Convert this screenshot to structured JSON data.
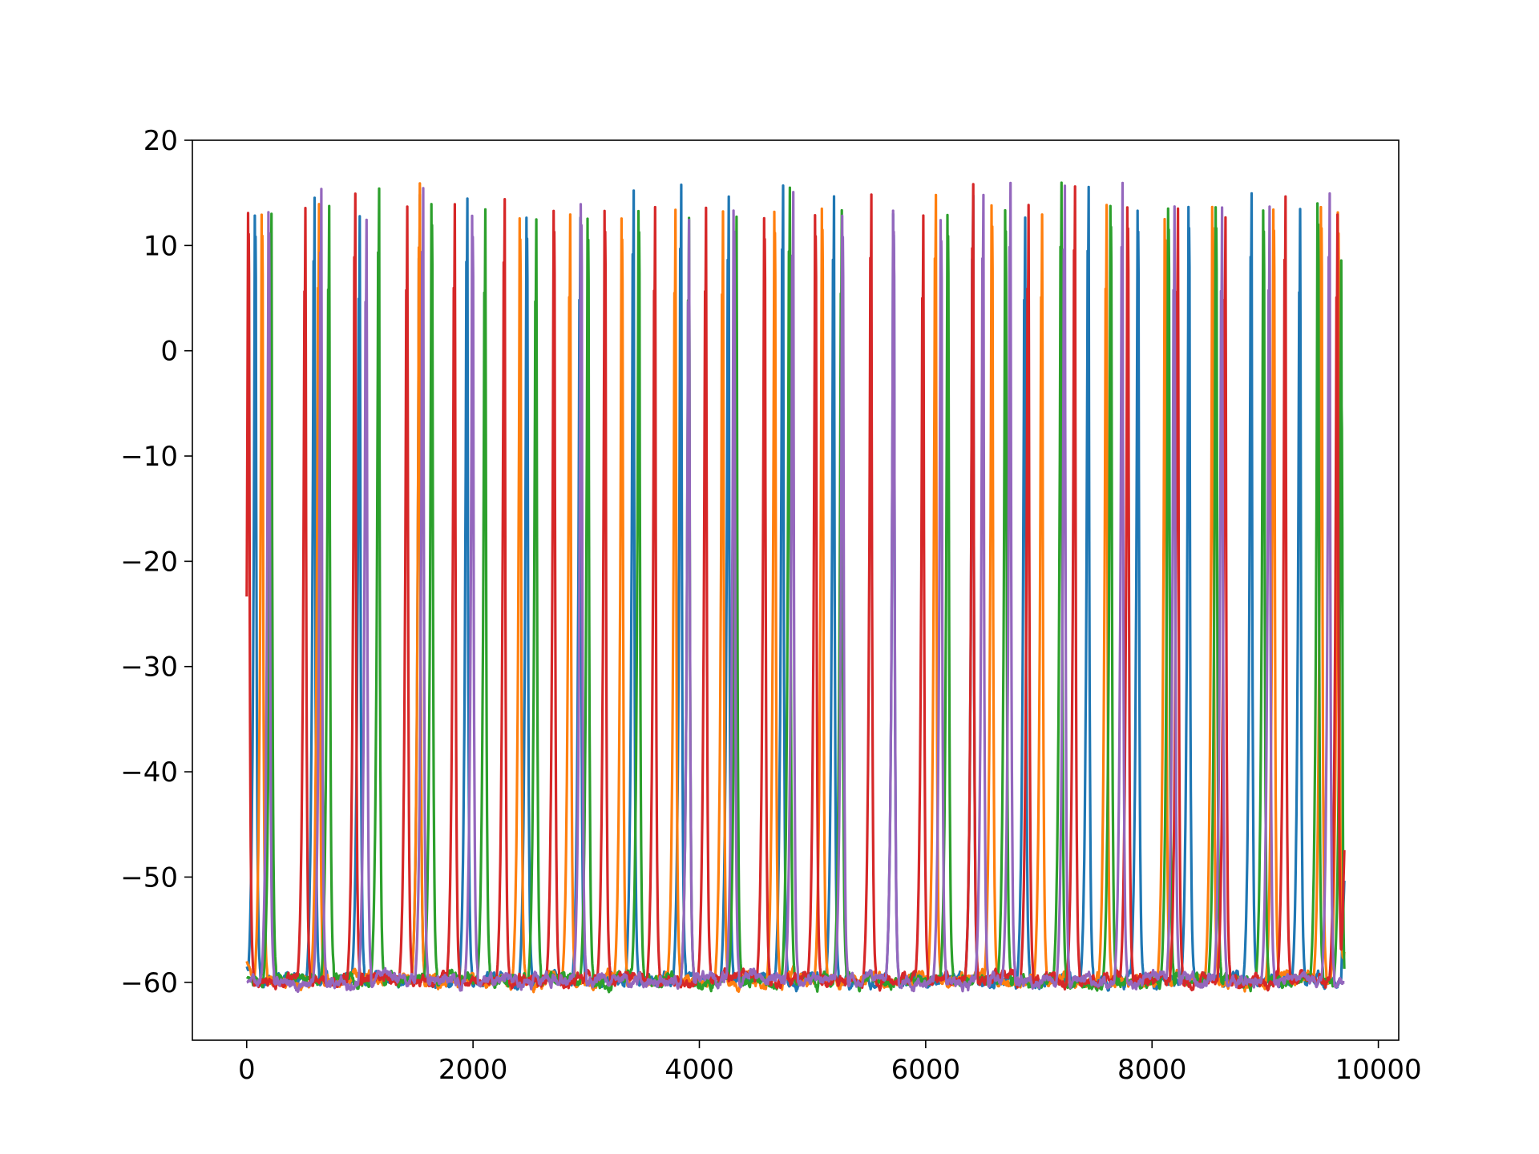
{
  "chart_data": {
    "type": "line",
    "title": "",
    "xlabel": "",
    "ylabel": "",
    "xlim": [
      -480,
      10180
    ],
    "ylim": [
      -65.5,
      20
    ],
    "x_ticks": [
      0,
      2000,
      4000,
      6000,
      8000,
      10000
    ],
    "x_tick_labels": [
      "0",
      "2000",
      "4000",
      "6000",
      "8000",
      "10000"
    ],
    "y_ticks": [
      20,
      10,
      0,
      -10,
      -20,
      -30,
      -40,
      -50,
      -60
    ],
    "y_tick_labels": [
      "20",
      "10",
      "0",
      "−10",
      "−20",
      "−30",
      "−40",
      "−50",
      "−60"
    ],
    "grid": false,
    "legend": "none",
    "x_end": 9700,
    "baseline": -59.8,
    "peak": 15.2,
    "series": [
      {
        "color": "#1f77b4",
        "start_value": -58.5,
        "end_value": -50.0,
        "spikes": [
          80,
          600,
          1000,
          1530,
          1950,
          2480,
          2950,
          3420,
          3840,
          4260,
          4740,
          5190,
          5720,
          6420,
          6880,
          7440,
          7880,
          8330,
          8880,
          9310
        ]
      },
      {
        "color": "#ff7f0e",
        "start_value": -58.0,
        "end_value": -57.0,
        "spikes": [
          140,
          640,
          1530,
          2420,
          2860,
          3320,
          3790,
          4210,
          4670,
          5090,
          6090,
          6590,
          7030,
          7600,
          8120,
          8540,
          9080,
          9500,
          9650
        ]
      },
      {
        "color": "#2ca02c",
        "start_value": -59.5,
        "end_value": -59.0,
        "spikes": [
          220,
          730,
          1170,
          1640,
          2110,
          2560,
          3020,
          3470,
          3910,
          4330,
          4800,
          5260,
          6200,
          6710,
          7200,
          7640,
          8150,
          8570,
          8990,
          9470,
          9680
        ]
      },
      {
        "color": "#d62728",
        "start_value": -54.5,
        "end_value": -47.0,
        "spikes": [
          20,
          520,
          960,
          1420,
          1840,
          2280,
          2720,
          3170,
          3610,
          4060,
          4580,
          5030,
          5520,
          5980,
          6420,
          6910,
          7320,
          7790,
          8230,
          8650,
          9180,
          9640
        ]
      },
      {
        "color": "#9467bd",
        "start_value": -60.0,
        "end_value": -60.0,
        "spikes": [
          200,
          660,
          1060,
          1560,
          2000,
          2960,
          3910,
          4310,
          4830,
          5270,
          5720,
          6140,
          6510,
          6750,
          7230,
          7740,
          8200,
          8620,
          9040,
          9570
        ]
      }
    ]
  }
}
